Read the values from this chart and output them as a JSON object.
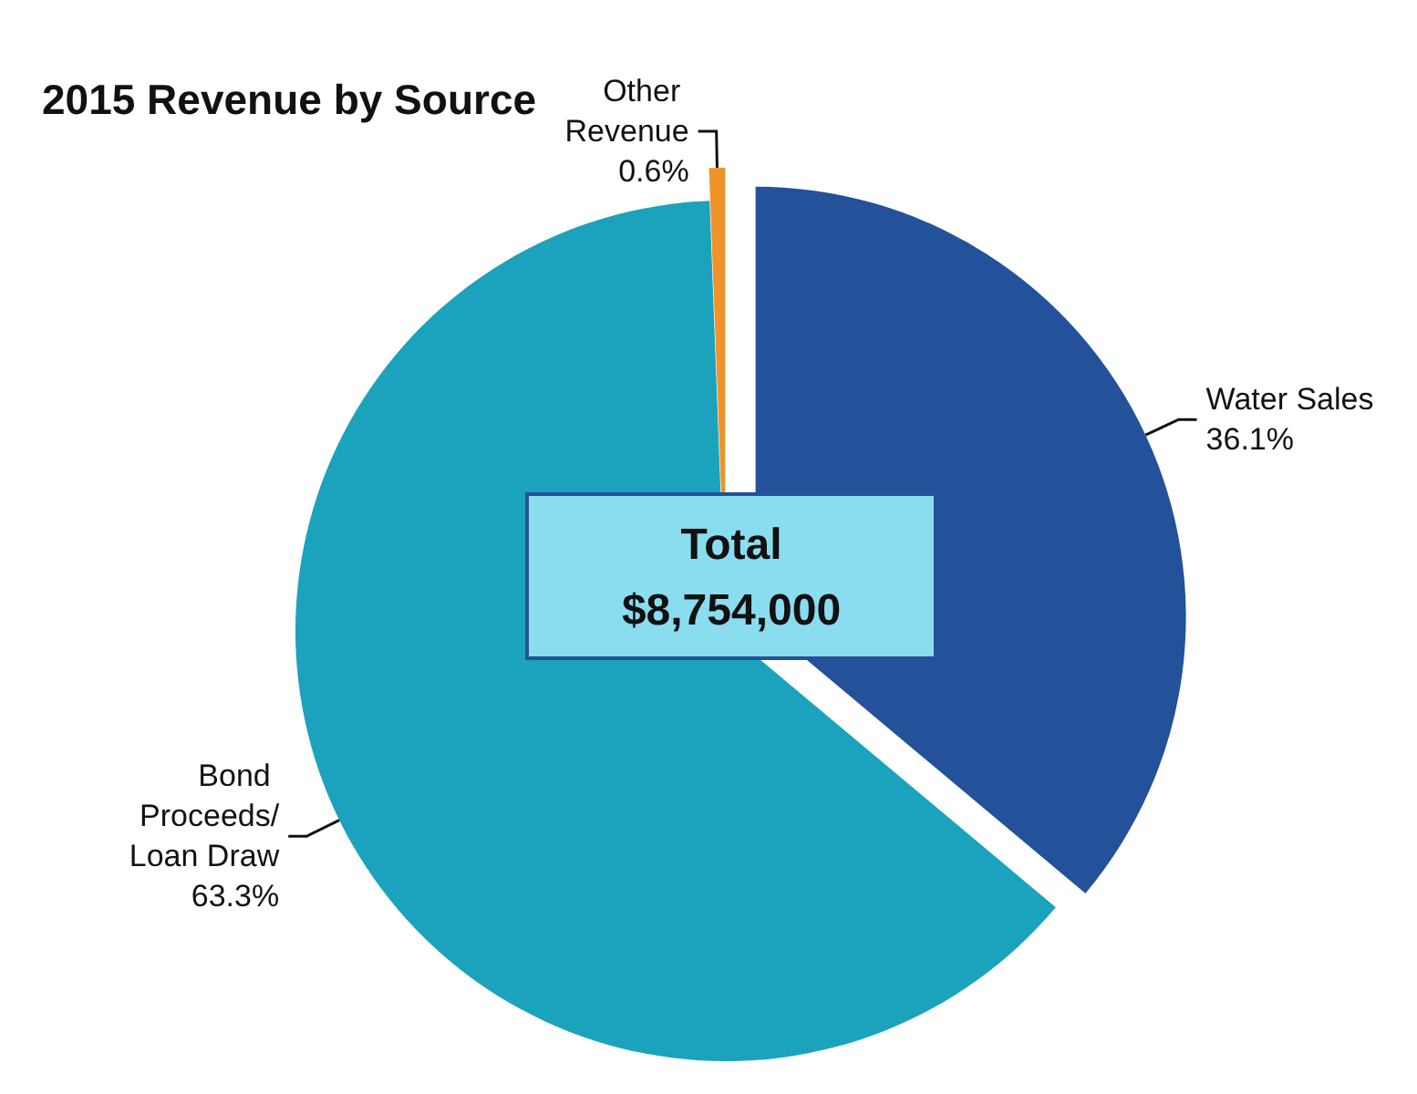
{
  "chart_data": {
    "type": "pie",
    "title": "2015 Revenue by Source",
    "categories": [
      "Water Sales",
      "Bond Proceeds/Loan Draw",
      "Other Revenue"
    ],
    "values": [
      36.1,
      63.3,
      0.6
    ],
    "value_labels": [
      "36.1%",
      "63.3%",
      "0.6%"
    ],
    "colors": [
      "#23519a",
      "#1ba3bd",
      "#f0932a"
    ],
    "annotations": [
      "Total",
      "$8,754,000"
    ],
    "legend": false
  }
}
